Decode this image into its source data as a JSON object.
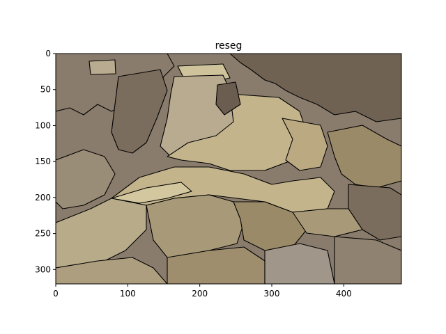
{
  "chart_data": {
    "type": "image",
    "title": "reseg",
    "xlabel": "",
    "ylabel": "",
    "image_size": {
      "width": 480,
      "height": 320
    },
    "xlim": [
      0,
      480
    ],
    "ylim": [
      320,
      0
    ],
    "x_ticks": [
      0,
      100,
      200,
      300,
      400
    ],
    "y_ticks": [
      0,
      50,
      100,
      150,
      200,
      250,
      300
    ],
    "grid": false,
    "legend": "none",
    "description_colors": {
      "dark_taupe": "#8a7c6c",
      "sand": "#c3b48c",
      "khaki": "#a89a78",
      "pale": "#cfc39c",
      "olive_brown": "#9a8a68",
      "gray_beige": "#a0968a"
    }
  }
}
